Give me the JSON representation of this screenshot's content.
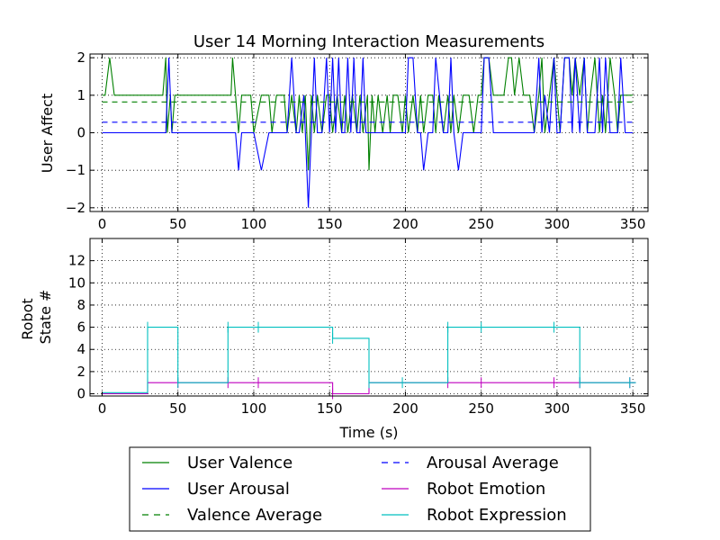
{
  "chart_data": [
    {
      "type": "line",
      "title": "User 14 Morning Interaction Measurements",
      "xlabel": "",
      "ylabel": "User Affect",
      "xlim": [
        -8,
        360
      ],
      "ylim": [
        -2.1,
        2.1
      ],
      "xticks": [
        0,
        50,
        100,
        150,
        200,
        250,
        300,
        350
      ],
      "yticks": [
        -2,
        -1,
        0,
        1,
        2
      ],
      "ytick_labels": [
        "−2",
        "−1",
        "0",
        "1",
        "2"
      ],
      "grid": true,
      "series": [
        {
          "name": "User Valence",
          "color": "#008000",
          "style": "solid",
          "x": [
            0,
            2,
            5,
            8,
            40,
            42,
            43,
            45,
            46,
            48,
            85,
            86,
            88,
            90,
            92,
            95,
            98,
            100,
            105,
            110,
            112,
            115,
            120,
            122,
            125,
            128,
            130,
            132,
            134,
            136,
            138,
            140,
            142,
            145,
            148,
            150,
            152,
            155,
            158,
            160,
            162,
            165,
            168,
            170,
            172,
            175,
            176,
            178,
            180,
            182,
            185,
            188,
            190,
            192,
            195,
            198,
            200,
            202,
            205,
            208,
            210,
            212,
            215,
            218,
            220,
            222,
            225,
            228,
            230,
            232,
            235,
            238,
            240,
            242,
            245,
            248,
            250,
            252,
            255,
            258,
            262,
            265,
            268,
            270,
            272,
            275,
            278,
            282,
            285,
            288,
            290,
            292,
            295,
            298,
            300,
            302,
            305,
            308,
            310,
            312,
            315,
            318,
            320,
            322,
            325,
            328,
            330,
            332,
            335,
            338,
            340,
            342,
            345,
            350
          ],
          "y": [
            1,
            1,
            2,
            1,
            1,
            2,
            0,
            1,
            0,
            1,
            1,
            2,
            1,
            0,
            1,
            1,
            1,
            0,
            1,
            1,
            0,
            1,
            1,
            0,
            1,
            0,
            1,
            0,
            1,
            -1,
            1,
            0,
            1,
            0,
            1,
            1,
            0,
            1,
            0,
            1,
            0,
            1,
            0,
            1,
            0,
            1,
            -1,
            1,
            0,
            1,
            0,
            1,
            0,
            1,
            1,
            0,
            1,
            0,
            1,
            0,
            1,
            0,
            1,
            1,
            0,
            1,
            0,
            1,
            0,
            1,
            0,
            1,
            1,
            1,
            0,
            1,
            1,
            2,
            2,
            1,
            1,
            1,
            2,
            2,
            1,
            2,
            1,
            1,
            0,
            1,
            2,
            0,
            1,
            2,
            1,
            0,
            2,
            2,
            1,
            2,
            1,
            2,
            0,
            1,
            2,
            0,
            1,
            0,
            2,
            1,
            0,
            1,
            1,
            1
          ]
        },
        {
          "name": "User Arousal",
          "color": "#0000ff",
          "style": "solid",
          "x": [
            0,
            2,
            40,
            42,
            44,
            46,
            48,
            85,
            88,
            90,
            92,
            95,
            100,
            105,
            110,
            120,
            122,
            125,
            128,
            130,
            133,
            136,
            138,
            140,
            142,
            145,
            148,
            150,
            152,
            154,
            156,
            158,
            160,
            162,
            164,
            166,
            168,
            170,
            172,
            174,
            176,
            178,
            200,
            202,
            205,
            208,
            210,
            212,
            215,
            218,
            220,
            225,
            228,
            230,
            232,
            235,
            238,
            240,
            245,
            250,
            252,
            255,
            258,
            260,
            280,
            285,
            288,
            290,
            292,
            295,
            298,
            300,
            302,
            305,
            308,
            310,
            312,
            315,
            318,
            320,
            325,
            328,
            330,
            332,
            335,
            338,
            340,
            342,
            345,
            350
          ],
          "y": [
            0,
            0,
            0,
            0,
            2,
            0,
            0,
            0,
            0,
            -1,
            0,
            0,
            0,
            -1,
            0,
            0,
            0,
            2,
            0,
            0,
            1,
            -2,
            0,
            2,
            0,
            0,
            2,
            0,
            2,
            0,
            2,
            0,
            0,
            2,
            0,
            2,
            0,
            0,
            2,
            0,
            0,
            0,
            0,
            2,
            2,
            0,
            0,
            -1,
            0,
            0,
            2,
            0,
            0,
            2,
            0,
            -1,
            0,
            0,
            0,
            0,
            2,
            2,
            0,
            0,
            0,
            0,
            2,
            0,
            1,
            0,
            2,
            0,
            0,
            2,
            2,
            0,
            2,
            0,
            2,
            0,
            0,
            2,
            0,
            2,
            0,
            0,
            0,
            2,
            0,
            0
          ]
        },
        {
          "name": "Valence Average",
          "color": "#008000",
          "style": "dashed",
          "x": [
            0,
            350
          ],
          "y": [
            0.82,
            0.82
          ]
        },
        {
          "name": "Arousal Average",
          "color": "#0000ff",
          "style": "dashed",
          "x": [
            0,
            350
          ],
          "y": [
            0.28,
            0.28
          ]
        }
      ]
    },
    {
      "type": "line",
      "title": "",
      "xlabel": "Time (s)",
      "ylabel_lines": [
        "Robot",
        "State #"
      ],
      "xlim": [
        -8,
        360
      ],
      "ylim": [
        -0.2,
        14
      ],
      "xticks": [
        0,
        50,
        100,
        150,
        200,
        250,
        300,
        350
      ],
      "yticks": [
        0,
        2,
        4,
        6,
        8,
        10,
        12
      ],
      "ytick_labels": [
        "0",
        "2",
        "4",
        "6",
        "8",
        "10",
        "12"
      ],
      "grid": true,
      "series": [
        {
          "name": "Robot Emotion",
          "color": "#bf00bf",
          "style": "steps-post",
          "x": [
            0,
            30,
            50,
            83,
            103,
            152,
            176,
            198,
            228,
            250,
            298,
            315,
            350,
            352
          ],
          "y": [
            0,
            1,
            1,
            1,
            1,
            0,
            1,
            1,
            1,
            1,
            1,
            1,
            1,
            1
          ],
          "markers_x": [
            30,
            50,
            83,
            103,
            152,
            176,
            228,
            250,
            298,
            315,
            348
          ]
        },
        {
          "name": "Robot Expression",
          "color": "#00bfbf",
          "style": "steps-post",
          "x": [
            0,
            30,
            50,
            83,
            103,
            152,
            176,
            198,
            228,
            250,
            298,
            315,
            350,
            352
          ],
          "y": [
            0.1,
            6,
            1,
            6,
            6,
            5,
            1,
            1,
            6,
            6,
            6,
            1,
            1,
            1
          ],
          "markers_x": [
            30,
            50,
            83,
            103,
            152,
            176,
            198,
            228,
            250,
            298,
            315,
            348
          ]
        }
      ]
    }
  ],
  "legend": {
    "placement": "bottom-center",
    "columns": 2,
    "entries": [
      {
        "label": "User Valence",
        "color": "#008000",
        "style": "solid"
      },
      {
        "label": "User Arousal",
        "color": "#0000ff",
        "style": "solid"
      },
      {
        "label": "Valence Average",
        "color": "#008000",
        "style": "dashed"
      },
      {
        "label": "Arousal Average",
        "color": "#0000ff",
        "style": "dashed"
      },
      {
        "label": "Robot Emotion",
        "color": "#bf00bf",
        "style": "solid"
      },
      {
        "label": "Robot Expression",
        "color": "#00bfbf",
        "style": "solid"
      }
    ]
  }
}
